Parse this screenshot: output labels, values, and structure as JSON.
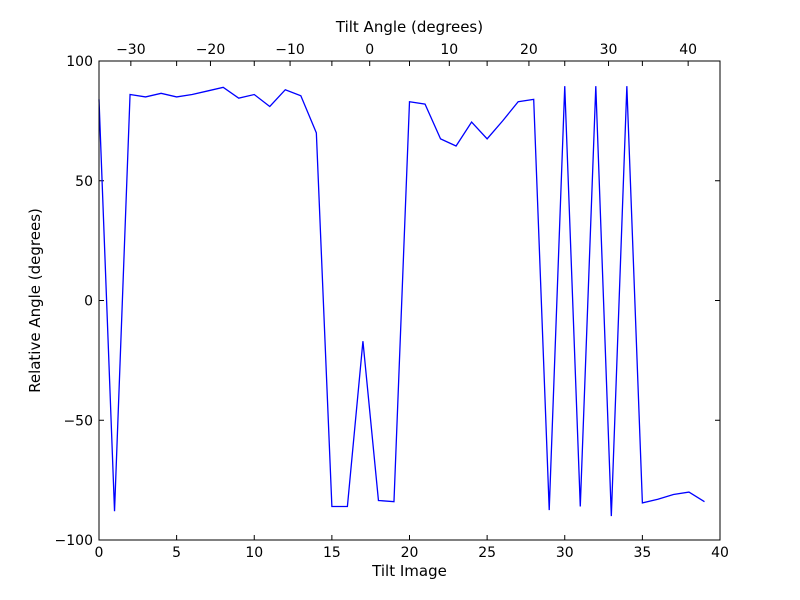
{
  "chart_data": {
    "type": "line",
    "xlabel": "Tilt Image",
    "ylabel": "Relative Angle (degrees)",
    "top_xlabel": "Tilt Angle (degrees)",
    "xlim": [
      0,
      40
    ],
    "ylim": [
      -100,
      100
    ],
    "grid": false,
    "x_ticks": [
      0,
      5,
      10,
      15,
      20,
      25,
      30,
      35,
      40
    ],
    "x_tick_labels": [
      "0",
      "5",
      "10",
      "15",
      "20",
      "25",
      "30",
      "35",
      "40"
    ],
    "y_ticks": [
      -100,
      -50,
      0,
      50,
      100
    ],
    "y_tick_labels": [
      "−100",
      "−50",
      "0",
      "50",
      "100"
    ],
    "top_ticks": [
      -30,
      -20,
      -10,
      0,
      10,
      20,
      30,
      40
    ],
    "top_tick_labels": [
      "−30",
      "−20",
      "−10",
      "0",
      "10",
      "20",
      "30",
      "40"
    ],
    "top_axis_xlim": [
      -34,
      44
    ],
    "line_color": "#0000ff",
    "series": [
      {
        "x": [
          0,
          1,
          2,
          3,
          4,
          5,
          6,
          7,
          8,
          9,
          10,
          11,
          12,
          13,
          14,
          15,
          16,
          17,
          18,
          19,
          20,
          21,
          22,
          23,
          24,
          25,
          26,
          27,
          28,
          29,
          30,
          31,
          32,
          33,
          34,
          35,
          36,
          37,
          38,
          39
        ],
        "values": [
          84,
          -88,
          86,
          85,
          86.5,
          85,
          86,
          87.5,
          89,
          84.5,
          86,
          81,
          88,
          85.5,
          70,
          -86,
          -86,
          -17,
          -83.5,
          -84,
          83,
          82,
          67.5,
          64.5,
          74.5,
          67.5,
          75,
          83,
          84,
          -87.5,
          89.5,
          -86,
          89.5,
          -90,
          89.5,
          -84.5,
          -83,
          -81,
          -80,
          -84
        ]
      }
    ]
  }
}
